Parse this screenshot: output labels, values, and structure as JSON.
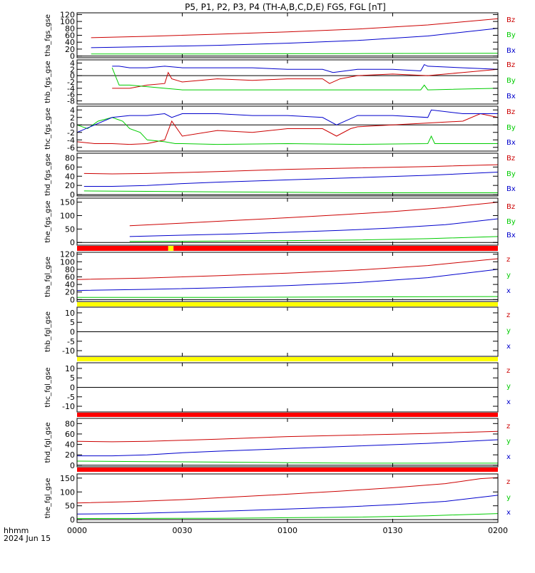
{
  "title": "P5, P1, P2, P3, P4 (TH-A,B,C,D,E) FGS, FGL [nT]",
  "footer": {
    "units_label": "hhmm",
    "date_label": "2024 Jun 15"
  },
  "colors": {
    "x": "#0000cc",
    "y": "#00cc00",
    "z": "#cc0000",
    "flag_red": "#ff0000",
    "flag_yellow": "#ffff00"
  },
  "chart_data": [
    {
      "type": "line",
      "ylabel": "tha_fgs_gse",
      "ylim": [
        -5,
        125
      ],
      "yticks": [
        0,
        20,
        40,
        60,
        80,
        100,
        120
      ],
      "xlim": [
        0,
        120
      ],
      "xticks": [
        0,
        30,
        60,
        90,
        120
      ],
      "xticklabels": [
        "0000",
        "0030",
        "0100",
        "0130",
        "0200"
      ],
      "legend": [
        "Bz",
        "By",
        "Bx"
      ],
      "series": [
        {
          "name": "Bz",
          "component": "z",
          "x": [
            4,
            20,
            40,
            60,
            80,
            100,
            120
          ],
          "y": [
            53,
            57,
            63,
            70,
            78,
            90,
            108
          ]
        },
        {
          "name": "By",
          "component": "y",
          "x": [
            4,
            40,
            80,
            120
          ],
          "y": [
            6,
            6,
            7,
            8
          ]
        },
        {
          "name": "Bx",
          "component": "x",
          "x": [
            4,
            20,
            40,
            60,
            80,
            100,
            120
          ],
          "y": [
            24,
            27,
            31,
            37,
            45,
            58,
            80
          ]
        }
      ]
    },
    {
      "type": "line",
      "ylabel": "thb_fgs_gse",
      "ylim": [
        -9,
        5
      ],
      "yticks": [
        -8,
        -6,
        -4,
        -2,
        0,
        2,
        4
      ],
      "xlim": [
        0,
        120
      ],
      "xticks": [
        0,
        30,
        60,
        90,
        120
      ],
      "legend": [
        "Bz",
        "By",
        "Bx"
      ],
      "series": [
        {
          "name": "Bz",
          "component": "z",
          "x": [
            10,
            15,
            20,
            25,
            26,
            27,
            30,
            40,
            50,
            60,
            70,
            72,
            75,
            80,
            90,
            100,
            110,
            120
          ],
          "y": [
            -4,
            -4,
            -3,
            -2.5,
            1,
            -1,
            -2,
            -1,
            -1.5,
            -1,
            -1,
            -2.5,
            -1,
            0,
            0.5,
            0,
            1,
            2
          ]
        },
        {
          "name": "By",
          "component": "y",
          "x": [
            10,
            12,
            15,
            20,
            25,
            30,
            40,
            60,
            80,
            98,
            99,
            100,
            120
          ],
          "y": [
            2.5,
            -3,
            -3,
            -3.5,
            -4,
            -4.5,
            -4.5,
            -4.5,
            -4.5,
            -4.5,
            -3,
            -4.5,
            -4
          ]
        },
        {
          "name": "Bx",
          "component": "x",
          "x": [
            10,
            12,
            15,
            20,
            25,
            30,
            40,
            50,
            60,
            70,
            73,
            80,
            90,
            98,
            99,
            100,
            110,
            120
          ],
          "y": [
            3,
            3,
            2.5,
            2.5,
            3,
            2.5,
            2.5,
            2.5,
            2,
            2,
            1,
            2,
            2,
            1.5,
            3.5,
            3,
            2.5,
            2
          ]
        }
      ]
    },
    {
      "type": "line",
      "ylabel": "thc_fgs_gse",
      "ylim": [
        -7,
        5
      ],
      "yticks": [
        -6,
        -4,
        -2,
        0,
        2,
        4
      ],
      "xlim": [
        0,
        120
      ],
      "xticks": [
        0,
        30,
        60,
        90,
        120
      ],
      "legend": [
        "Bz",
        "By",
        "Bx"
      ],
      "series": [
        {
          "name": "Bz",
          "component": "z",
          "x": [
            0,
            5,
            10,
            15,
            20,
            25,
            27,
            30,
            40,
            50,
            60,
            70,
            74,
            78,
            80,
            90,
            100,
            110,
            115,
            120
          ],
          "y": [
            -4.5,
            -5,
            -5,
            -5.2,
            -5,
            -4,
            1,
            -3,
            -1.5,
            -2,
            -1,
            -1,
            -3,
            -1,
            -0.5,
            0,
            0.5,
            1,
            3,
            2
          ]
        },
        {
          "name": "By",
          "component": "y",
          "x": [
            0,
            3,
            6,
            10,
            13,
            15,
            18,
            20,
            25,
            28,
            30,
            40,
            60,
            80,
            100,
            101,
            102,
            120
          ],
          "y": [
            0,
            -1,
            1,
            2,
            1,
            -1,
            -2,
            -4,
            -4.5,
            -5,
            -5,
            -5.2,
            -5,
            -5.2,
            -5,
            -3,
            -5,
            -5
          ]
        },
        {
          "name": "Bx",
          "component": "x",
          "x": [
            0,
            5,
            10,
            15,
            20,
            25,
            27,
            30,
            40,
            50,
            60,
            70,
            74,
            80,
            90,
            100,
            101,
            110,
            120
          ],
          "y": [
            -2,
            0,
            2,
            2.5,
            2.5,
            3,
            2,
            3,
            3,
            2.5,
            2.5,
            2,
            0,
            2.5,
            2.5,
            2,
            4,
            3,
            3
          ]
        }
      ]
    },
    {
      "type": "line",
      "ylabel": "thd_fgs_gse",
      "ylim": [
        -3,
        90
      ],
      "yticks": [
        0,
        20,
        40,
        60,
        80
      ],
      "xlim": [
        0,
        120
      ],
      "xticks": [
        0,
        30,
        60,
        90,
        120
      ],
      "legend": [
        "Bz",
        "By",
        "Bx"
      ],
      "series": [
        {
          "name": "Bz",
          "component": "z",
          "x": [
            2,
            10,
            20,
            30,
            40,
            60,
            80,
            100,
            120
          ],
          "y": [
            46,
            45,
            46,
            48,
            50,
            55,
            58,
            61,
            65
          ]
        },
        {
          "name": "By",
          "component": "y",
          "x": [
            2,
            20,
            40,
            60,
            80,
            100,
            120
          ],
          "y": [
            8,
            7,
            6,
            5,
            4,
            4,
            4
          ]
        },
        {
          "name": "Bx",
          "component": "x",
          "x": [
            2,
            10,
            20,
            30,
            40,
            60,
            80,
            100,
            120
          ],
          "y": [
            18,
            18,
            20,
            24,
            27,
            32,
            37,
            42,
            49
          ]
        }
      ]
    },
    {
      "type": "line",
      "ylabel": "the_fgs_gse",
      "ylim": [
        -10,
        165
      ],
      "yticks": [
        0,
        50,
        100,
        150
      ],
      "xlim": [
        0,
        120
      ],
      "xticks": [
        0,
        30,
        60,
        90,
        120
      ],
      "legend": [
        "Bz",
        "By",
        "Bx"
      ],
      "series": [
        {
          "name": "Bz",
          "component": "z",
          "x": [
            15,
            30,
            45,
            60,
            75,
            90,
            105,
            120
          ],
          "y": [
            62,
            72,
            82,
            92,
            103,
            115,
            130,
            150
          ]
        },
        {
          "name": "By",
          "component": "y",
          "x": [
            15,
            40,
            60,
            80,
            100,
            120
          ],
          "y": [
            4,
            5,
            7,
            9,
            14,
            22
          ]
        },
        {
          "name": "Bx",
          "component": "x",
          "x": [
            15,
            30,
            45,
            60,
            75,
            90,
            105,
            120
          ],
          "y": [
            22,
            27,
            32,
            38,
            45,
            54,
            66,
            88
          ]
        }
      ]
    },
    {
      "type": "line",
      "ylabel": "tha_fgl_gse",
      "ylim": [
        -5,
        125
      ],
      "yticks": [
        0,
        20,
        40,
        60,
        80,
        100,
        120
      ],
      "xlim": [
        0,
        120
      ],
      "xticks": [
        0,
        30,
        60,
        90,
        120
      ],
      "legend": [
        "z",
        "y",
        "x"
      ],
      "series": [
        {
          "name": "z",
          "component": "z",
          "x": [
            0,
            20,
            40,
            60,
            80,
            100,
            120
          ],
          "y": [
            53,
            57,
            63,
            70,
            78,
            90,
            108
          ]
        },
        {
          "name": "y",
          "component": "y",
          "x": [
            0,
            40,
            80,
            120
          ],
          "y": [
            6,
            6,
            7,
            8
          ]
        },
        {
          "name": "x",
          "component": "x",
          "x": [
            0,
            20,
            40,
            60,
            80,
            100,
            120
          ],
          "y": [
            24,
            27,
            31,
            37,
            45,
            58,
            80
          ]
        }
      ]
    },
    {
      "type": "line",
      "ylabel": "thb_fgl_gse",
      "ylim": [
        -13,
        13
      ],
      "yticks": [
        -10,
        -5,
        0,
        5,
        10
      ],
      "xlim": [
        0,
        120
      ],
      "xticks": [
        0,
        30,
        60,
        90,
        120
      ],
      "legend": [
        "z",
        "y",
        "x"
      ],
      "series": []
    },
    {
      "type": "line",
      "ylabel": "thc_fgl_gse",
      "ylim": [
        -13,
        13
      ],
      "yticks": [
        -10,
        -5,
        0,
        5,
        10
      ],
      "xlim": [
        0,
        120
      ],
      "xticks": [
        0,
        30,
        60,
        90,
        120
      ],
      "legend": [
        "z",
        "y",
        "x"
      ],
      "series": []
    },
    {
      "type": "line",
      "ylabel": "thd_fgl_gse",
      "ylim": [
        -3,
        90
      ],
      "yticks": [
        0,
        20,
        40,
        60,
        80
      ],
      "xlim": [
        0,
        120
      ],
      "xticks": [
        0,
        30,
        60,
        90,
        120
      ],
      "legend": [
        "z",
        "y",
        "x"
      ],
      "series": [
        {
          "name": "z",
          "component": "z",
          "x": [
            0,
            10,
            20,
            30,
            40,
            60,
            80,
            100,
            120
          ],
          "y": [
            46,
            45,
            46,
            48,
            50,
            55,
            58,
            61,
            65
          ]
        },
        {
          "name": "y",
          "component": "y",
          "x": [
            0,
            20,
            40,
            60,
            80,
            100,
            120
          ],
          "y": [
            8,
            7,
            6,
            5,
            4,
            4,
            4
          ]
        },
        {
          "name": "x",
          "component": "x",
          "x": [
            0,
            10,
            20,
            30,
            40,
            60,
            80,
            100,
            120
          ],
          "y": [
            18,
            18,
            20,
            24,
            27,
            32,
            37,
            42,
            49
          ]
        }
      ]
    },
    {
      "type": "line",
      "ylabel": "the_fgl_gse",
      "ylim": [
        -10,
        165
      ],
      "yticks": [
        0,
        50,
        100,
        150
      ],
      "xlim": [
        0,
        120
      ],
      "xticks": [
        0,
        30,
        60,
        90,
        120
      ],
      "legend": [
        "z",
        "y",
        "x"
      ],
      "series": [
        {
          "name": "z",
          "component": "z",
          "x": [
            0,
            15,
            30,
            45,
            60,
            75,
            90,
            105,
            115,
            120
          ],
          "y": [
            60,
            65,
            72,
            82,
            92,
            103,
            115,
            130,
            148,
            152
          ]
        },
        {
          "name": "y",
          "component": "y",
          "x": [
            0,
            40,
            60,
            80,
            100,
            120
          ],
          "y": [
            4,
            5,
            7,
            9,
            14,
            22
          ]
        },
        {
          "name": "x",
          "component": "x",
          "x": [
            0,
            15,
            30,
            45,
            60,
            75,
            90,
            105,
            120
          ],
          "y": [
            20,
            22,
            27,
            32,
            38,
            45,
            54,
            66,
            88
          ]
        }
      ]
    }
  ],
  "flag_bars": [
    {
      "segments": [
        {
          "x0": 0,
          "x1": 26,
          "color": "red"
        },
        {
          "x0": 26,
          "x1": 27.5,
          "color": "yellow"
        },
        {
          "x0": 27.5,
          "x1": 120,
          "color": "red"
        }
      ]
    },
    {
      "segments": [
        {
          "x0": 0,
          "x1": 120,
          "color": "yellow"
        }
      ]
    },
    {
      "segments": [
        {
          "x0": 0,
          "x1": 120,
          "color": "yellow"
        }
      ]
    },
    {
      "segments": [
        {
          "x0": 0,
          "x1": 120,
          "color": "red"
        }
      ]
    },
    {
      "segments": [
        {
          "x0": 0,
          "x1": 120,
          "color": "red"
        }
      ]
    }
  ]
}
